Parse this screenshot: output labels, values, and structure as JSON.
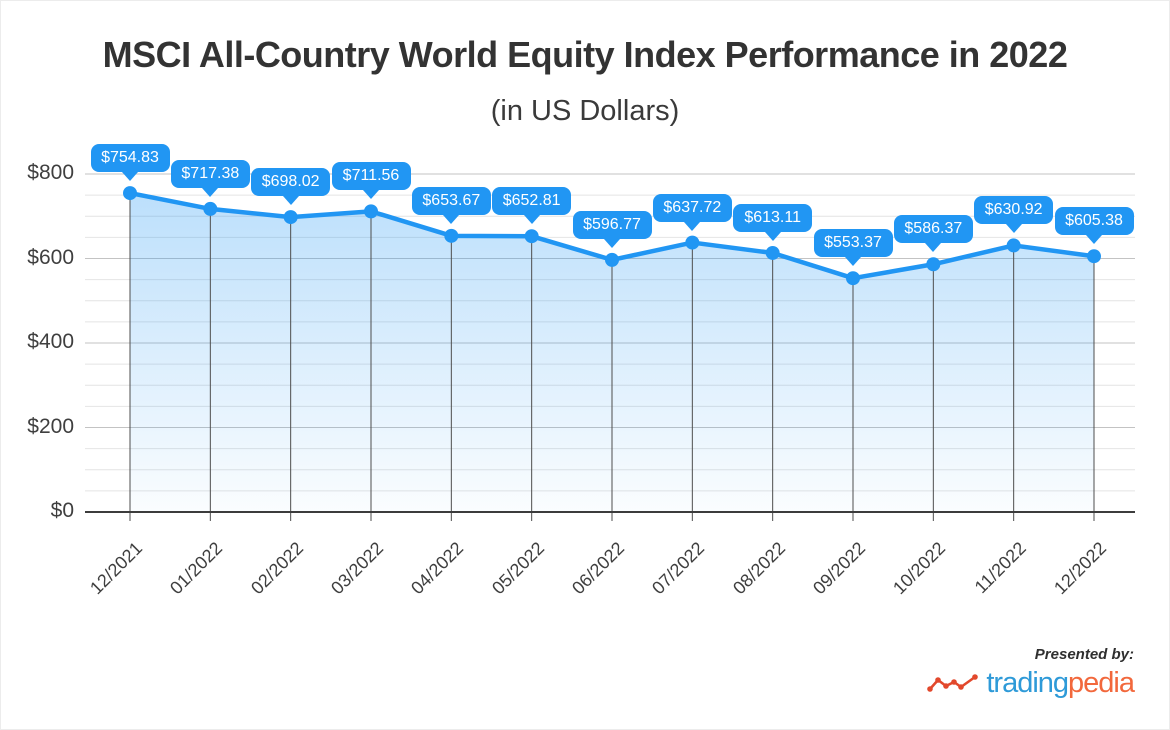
{
  "chart_data": {
    "type": "area",
    "title": "MSCI All-Country World Equity Index Performance in 2022",
    "subtitle": "(in US Dollars)",
    "categories": [
      "12/2021",
      "01/2022",
      "02/2022",
      "03/2022",
      "04/2022",
      "05/2022",
      "06/2022",
      "07/2022",
      "08/2022",
      "09/2022",
      "10/2022",
      "11/2022",
      "12/2022"
    ],
    "values": [
      754.83,
      717.38,
      698.02,
      711.56,
      653.67,
      652.81,
      596.77,
      637.72,
      613.11,
      553.37,
      586.37,
      630.92,
      605.38
    ],
    "point_labels": [
      "$754.83",
      "$717.38",
      "$698.02",
      "$711.56",
      "$653.67",
      "$652.81",
      "$596.77",
      "$637.72",
      "$613.11",
      "$553.37",
      "$586.37",
      "$630.92",
      "$605.38"
    ],
    "xlabel": "",
    "ylabel": "",
    "ylim": [
      0,
      800
    ],
    "ytick_values": [
      0,
      200,
      400,
      600,
      800
    ],
    "ytick_labels": [
      "$0",
      "$200",
      "$400",
      "$600",
      "$800"
    ],
    "grid": {
      "horizontal_minor_step": 50,
      "horizontal_major_step": 200,
      "vertical_lines": "at each category"
    },
    "legend": "none",
    "x_label_rotation_deg": -45
  },
  "footer": {
    "presented_by": "Presented by:",
    "logo_primary": "trading",
    "logo_secondary": "pedia"
  },
  "colors": {
    "accent_blue": "#2196f3",
    "grid_minor": "#e4e4e4",
    "grid_major": "#c3c3c3",
    "vertical_line": "#4d4d4d",
    "baseline": "#3c3c3c",
    "axis_text": "#3f3f3f",
    "logo_blue": "#2e9ad8",
    "logo_orange": "#f2683c",
    "logo_mark_red": "#e2482c"
  }
}
